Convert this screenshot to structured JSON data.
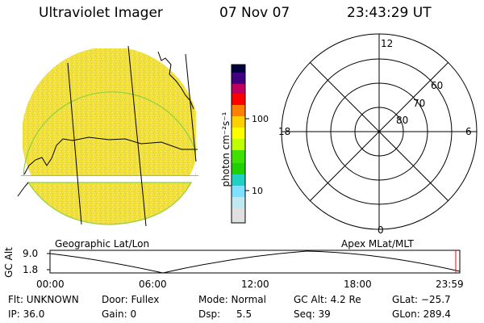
{
  "header": {
    "instrument": "Ultraviolet Imager",
    "date": "07 Nov 07",
    "time": "23:43:29 UT"
  },
  "colorbar": {
    "unit_label": "photon cm⁻²s⁻¹",
    "ticks": [
      "100",
      "10"
    ],
    "scale": "log",
    "colors_top_to_bottom": [
      "#000040",
      "#400080",
      "#c00060",
      "#ff0000",
      "#ff8000",
      "#ffd000",
      "#ffff00",
      "#c0ff00",
      "#40e000",
      "#20d0c0",
      "#80e0ff",
      "#e0e0e0"
    ]
  },
  "image_panel": {
    "label": "Geographic Lat/Lon",
    "fill_color": "#f2e03a"
  },
  "polar_panel": {
    "label": "Apex  MLat/MLT",
    "mlt_labels": {
      "top": "12",
      "left": "18",
      "right": "6",
      "bottom": "0"
    },
    "lat_rings": [
      "60",
      "70",
      "80"
    ]
  },
  "altitude_plot": {
    "ylabel": "GC Alt",
    "y_ticks": [
      "9.0",
      "1.8"
    ],
    "x_ticks": [
      "00:00",
      "06:00",
      "12:00",
      "18:00",
      "23:59"
    ]
  },
  "status": {
    "flt": "Flt: UNKNOWN",
    "ip": "IP: 36.0",
    "door": "Door: Fullex",
    "gain": "Gain:  0",
    "mode": "Mode: Normal",
    "dsp": "Dsp:",
    "dsp_value": "5.5",
    "gc_alt": "GC Alt: 4.2 Re",
    "seq": "Seq: 39",
    "glat": "GLat: −25.7",
    "glon": "GLon: 289.4"
  }
}
